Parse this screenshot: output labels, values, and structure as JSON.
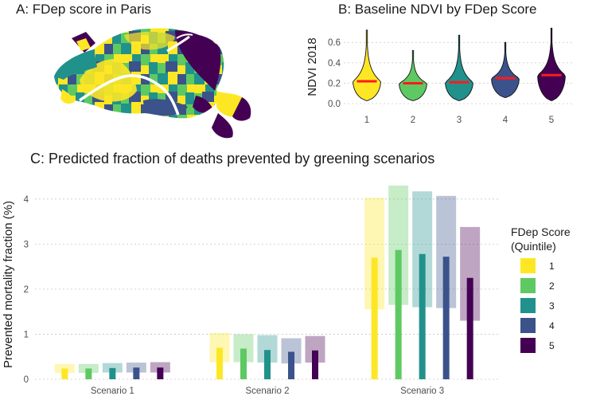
{
  "panels": {
    "a_title": "A: FDep score in Paris",
    "b_title": "B: Baseline NDVI by FDep Score",
    "c_title": "C: Predicted fraction of deaths prevented by greening scenarios"
  },
  "colors": {
    "1": "#fde725",
    "2": "#5ec962",
    "3": "#21918c",
    "4": "#3b528b",
    "5": "#440154",
    "median": "#ff1a1a",
    "grid": "#c8c8c8"
  },
  "chart_data": [
    {
      "type": "map",
      "title": "A: FDep score in Paris",
      "map_image": "choropleth-of-paris-by-fdep-quintile"
    },
    {
      "type": "violin",
      "title": "B: Baseline NDVI by FDep Score",
      "xlabel": "",
      "ylabel": "NDVI 2018",
      "categories": [
        "1",
        "2",
        "3",
        "4",
        "5"
      ],
      "ylim": [
        -0.03,
        0.75
      ],
      "yticks": [
        "0.0",
        "0.2",
        "0.4",
        "0.6"
      ],
      "grid": true,
      "medians": [
        0.22,
        0.2,
        0.21,
        0.25,
        0.28
      ],
      "violin_min": [
        0.03,
        0.03,
        0.03,
        0.06,
        0.03
      ],
      "violin_max": [
        0.72,
        0.52,
        0.67,
        0.6,
        0.74
      ]
    },
    {
      "type": "bar",
      "title": "C: Predicted fraction of deaths prevented by greening scenarios",
      "xlabel": "",
      "ylabel": "Prevented mortality fraction (%)",
      "categories": [
        "Scenario 1",
        "Scenario 2",
        "Scenario 3"
      ],
      "ylim": [
        0,
        4.35
      ],
      "yticks": [
        "0",
        "1",
        "2",
        "3",
        "4"
      ],
      "grid": true,
      "legend": {
        "title_line1": "FDep Score",
        "title_line2": "(Quintile)",
        "placement": "right"
      },
      "series": [
        {
          "name": "1",
          "values": [
            0.24,
            0.7,
            2.7
          ],
          "ci_low": [
            0.14,
            0.38,
            1.55
          ],
          "ci_high": [
            0.34,
            1.03,
            4.03
          ]
        },
        {
          "name": "2",
          "values": [
            0.24,
            0.68,
            2.87
          ],
          "ci_low": [
            0.14,
            0.38,
            1.65
          ],
          "ci_high": [
            0.34,
            1.0,
            4.3
          ]
        },
        {
          "name": "3",
          "values": [
            0.25,
            0.65,
            2.78
          ],
          "ci_low": [
            0.15,
            0.37,
            1.6
          ],
          "ci_high": [
            0.36,
            0.98,
            4.17
          ]
        },
        {
          "name": "4",
          "values": [
            0.26,
            0.61,
            2.72
          ],
          "ci_low": [
            0.15,
            0.35,
            1.58
          ],
          "ci_high": [
            0.37,
            0.91,
            4.07
          ]
        },
        {
          "name": "5",
          "values": [
            0.26,
            0.64,
            2.25
          ],
          "ci_low": [
            0.15,
            0.37,
            1.3
          ],
          "ci_high": [
            0.38,
            0.96,
            3.38
          ]
        }
      ]
    }
  ]
}
